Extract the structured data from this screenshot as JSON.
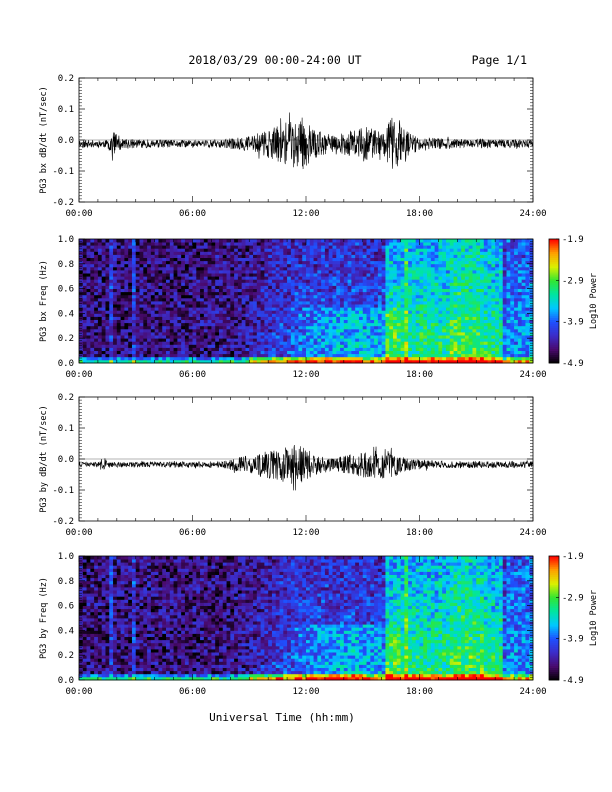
{
  "header": {
    "title": "2018/03/29  00:00-24:00 UT",
    "page": "Page 1/1"
  },
  "x_axis": {
    "label": "Universal Time (hh:mm)",
    "ticks": [
      "00:00",
      "06:00",
      "12:00",
      "18:00",
      "24:00"
    ]
  },
  "colorbar": {
    "label": "Log10 Power",
    "ticks": [
      "-1.9",
      "-2.9",
      "-3.9",
      "-4.9"
    ],
    "range": [
      -4.9,
      -1.9
    ],
    "colormap": [
      "#000000",
      "#4a0a6e",
      "#3c2cc8",
      "#1e50ff",
      "#00c8ff",
      "#00e6a0",
      "#32e632",
      "#dcf000",
      "#ffa000",
      "#ff0000"
    ]
  },
  "chart_data": [
    {
      "type": "line",
      "ylabel": "PG3 bx dB/dt (nT/sec)",
      "xlim": [
        0,
        24
      ],
      "ylim": [
        -0.2,
        0.2
      ],
      "yticks": [
        "0.2",
        "0.1",
        "0.0",
        "-0.1",
        "-0.2"
      ],
      "envelope": [
        {
          "t": 0,
          "amp": 0.012
        },
        {
          "t": 1.5,
          "amp": 0.012
        },
        {
          "t": 1.8,
          "amp": 0.045
        },
        {
          "t": 2.3,
          "amp": 0.015
        },
        {
          "t": 5,
          "amp": 0.012
        },
        {
          "t": 7.5,
          "amp": 0.013
        },
        {
          "t": 9,
          "amp": 0.025
        },
        {
          "t": 10,
          "amp": 0.045
        },
        {
          "t": 11,
          "amp": 0.07
        },
        {
          "t": 11.8,
          "amp": 0.085
        },
        {
          "t": 12.5,
          "amp": 0.045
        },
        {
          "t": 13.5,
          "amp": 0.025
        },
        {
          "t": 14.5,
          "amp": 0.045
        },
        {
          "t": 15.2,
          "amp": 0.06
        },
        {
          "t": 16,
          "amp": 0.035
        },
        {
          "t": 16.6,
          "amp": 0.09
        },
        {
          "t": 17.2,
          "amp": 0.05
        },
        {
          "t": 18,
          "amp": 0.02
        },
        {
          "t": 20,
          "amp": 0.016
        },
        {
          "t": 24,
          "amp": 0.012
        }
      ],
      "offset": -0.012
    },
    {
      "type": "heatmap",
      "ylabel": "PG3 bx Freq (Hz)",
      "xlim": [
        0,
        24
      ],
      "ylim": [
        0.0,
        1.0
      ],
      "yticks": [
        "1.0",
        "0.8",
        "0.6",
        "0.4",
        "0.2",
        "0.0"
      ],
      "zlim": [
        -4.9,
        -1.9
      ],
      "seed": 7
    },
    {
      "type": "line",
      "ylabel": "PG3 by dB/dt (nT/sec)",
      "xlim": [
        0,
        24
      ],
      "ylim": [
        -0.2,
        0.2
      ],
      "yticks": [
        "0.2",
        "0.1",
        "0.0",
        "-0.1",
        "-0.2"
      ],
      "envelope": [
        {
          "t": 0,
          "amp": 0.008
        },
        {
          "t": 1,
          "amp": 0.008
        },
        {
          "t": 1.2,
          "amp": 0.02
        },
        {
          "t": 1.6,
          "amp": 0.008
        },
        {
          "t": 7.5,
          "amp": 0.01
        },
        {
          "t": 8.5,
          "amp": 0.025
        },
        {
          "t": 10,
          "amp": 0.045
        },
        {
          "t": 11,
          "amp": 0.06
        },
        {
          "t": 11.5,
          "amp": 0.07
        },
        {
          "t": 12.5,
          "amp": 0.035
        },
        {
          "t": 13.5,
          "amp": 0.02
        },
        {
          "t": 14.5,
          "amp": 0.035
        },
        {
          "t": 15.5,
          "amp": 0.045
        },
        {
          "t": 16.5,
          "amp": 0.045
        },
        {
          "t": 17.3,
          "amp": 0.02
        },
        {
          "t": 19,
          "amp": 0.012
        },
        {
          "t": 24,
          "amp": 0.01
        }
      ],
      "offset": -0.018
    },
    {
      "type": "heatmap",
      "ylabel": "PG3 by Freq (Hz)",
      "xlim": [
        0,
        24
      ],
      "ylim": [
        0.0,
        1.0
      ],
      "yticks": [
        "1.0",
        "0.8",
        "0.6",
        "0.4",
        "0.2",
        "0.0"
      ],
      "zlim": [
        -4.9,
        -1.9
      ],
      "seed": 13
    }
  ]
}
